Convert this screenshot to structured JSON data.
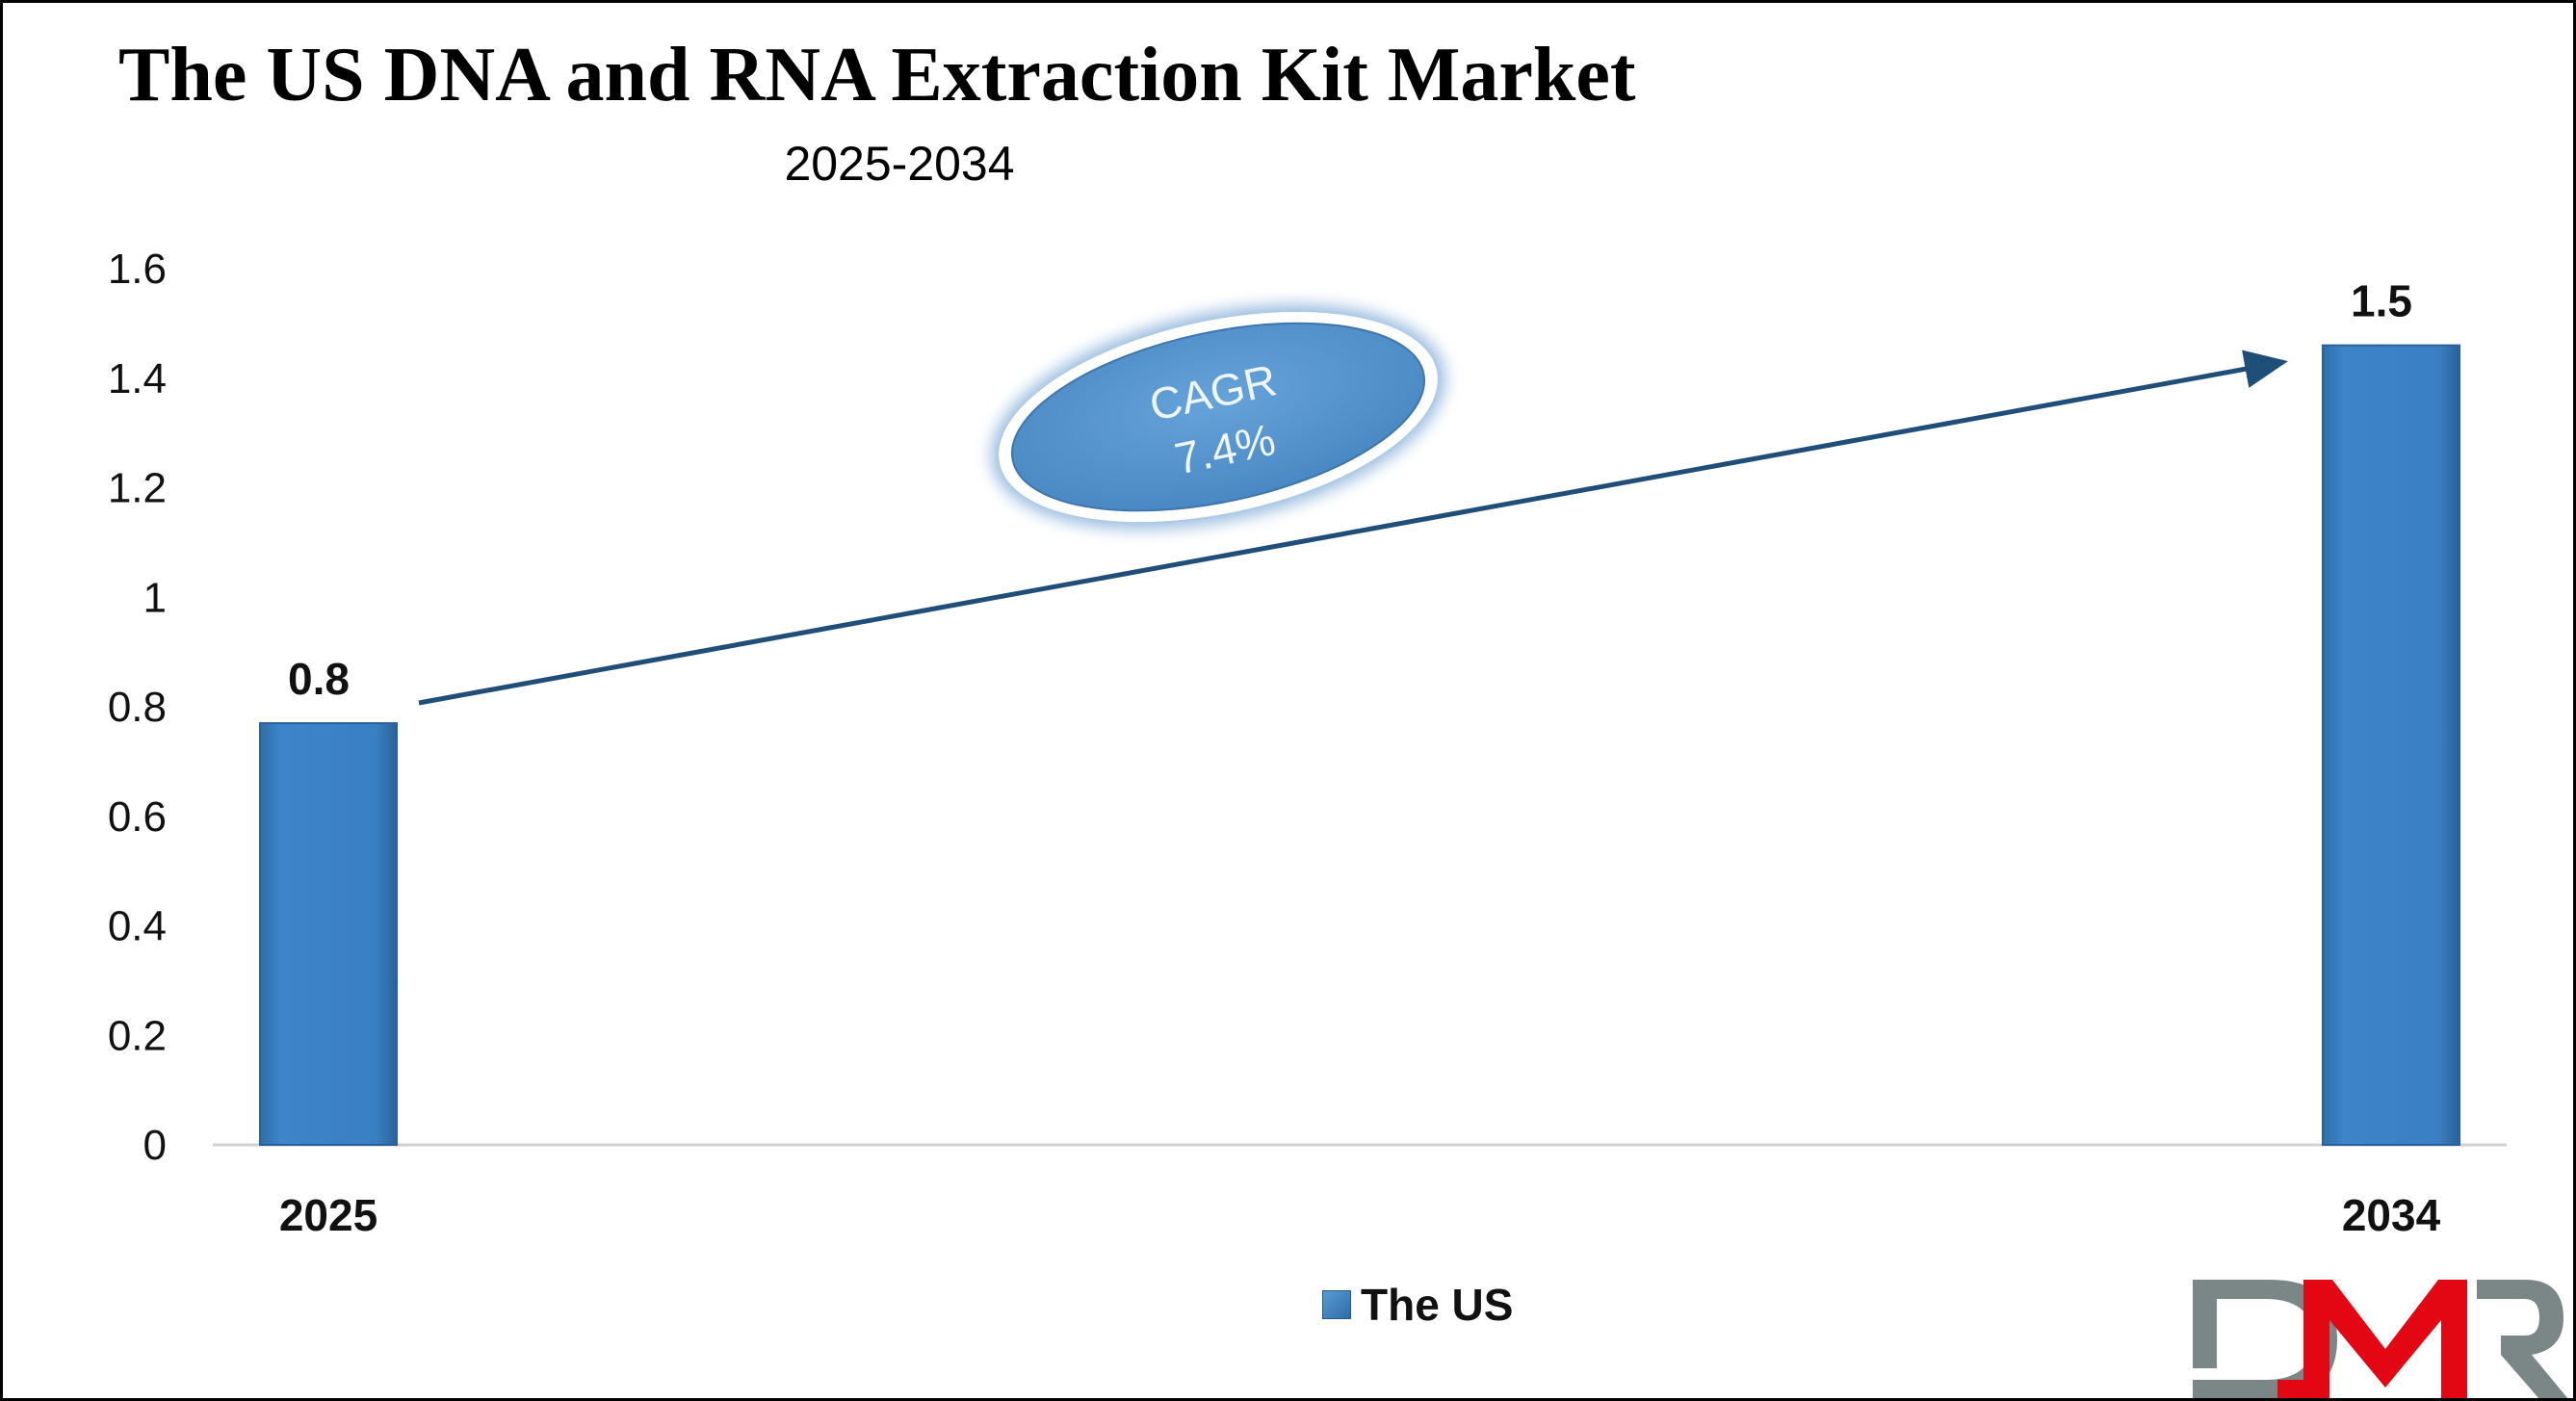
{
  "chart_data": {
    "type": "bar",
    "title": "The US DNA and RNA Extraction Kit Market",
    "subtitle": "2025-2034",
    "categories": [
      "2025",
      "2034"
    ],
    "series": [
      {
        "name": "The US",
        "values": [
          0.77,
          1.46
        ],
        "data_labels": [
          "0.8",
          "1.5"
        ],
        "color": "#3a7fc4"
      }
    ],
    "ylim": [
      0,
      1.6
    ],
    "yticks": [
      "0",
      "0.2",
      "0.4",
      "0.6",
      "0.8",
      "1",
      "1.2",
      "1.4",
      "1.6"
    ],
    "grid": false,
    "legend_position": "bottom",
    "annotation": {
      "line1": "CAGR",
      "line2": "7.4%",
      "arrow_color": "#1f4e79",
      "ellipse_color": "#5b9bd5"
    }
  },
  "logo": {
    "text": "DMR",
    "colors": [
      "#7a8786",
      "#e30613"
    ]
  }
}
